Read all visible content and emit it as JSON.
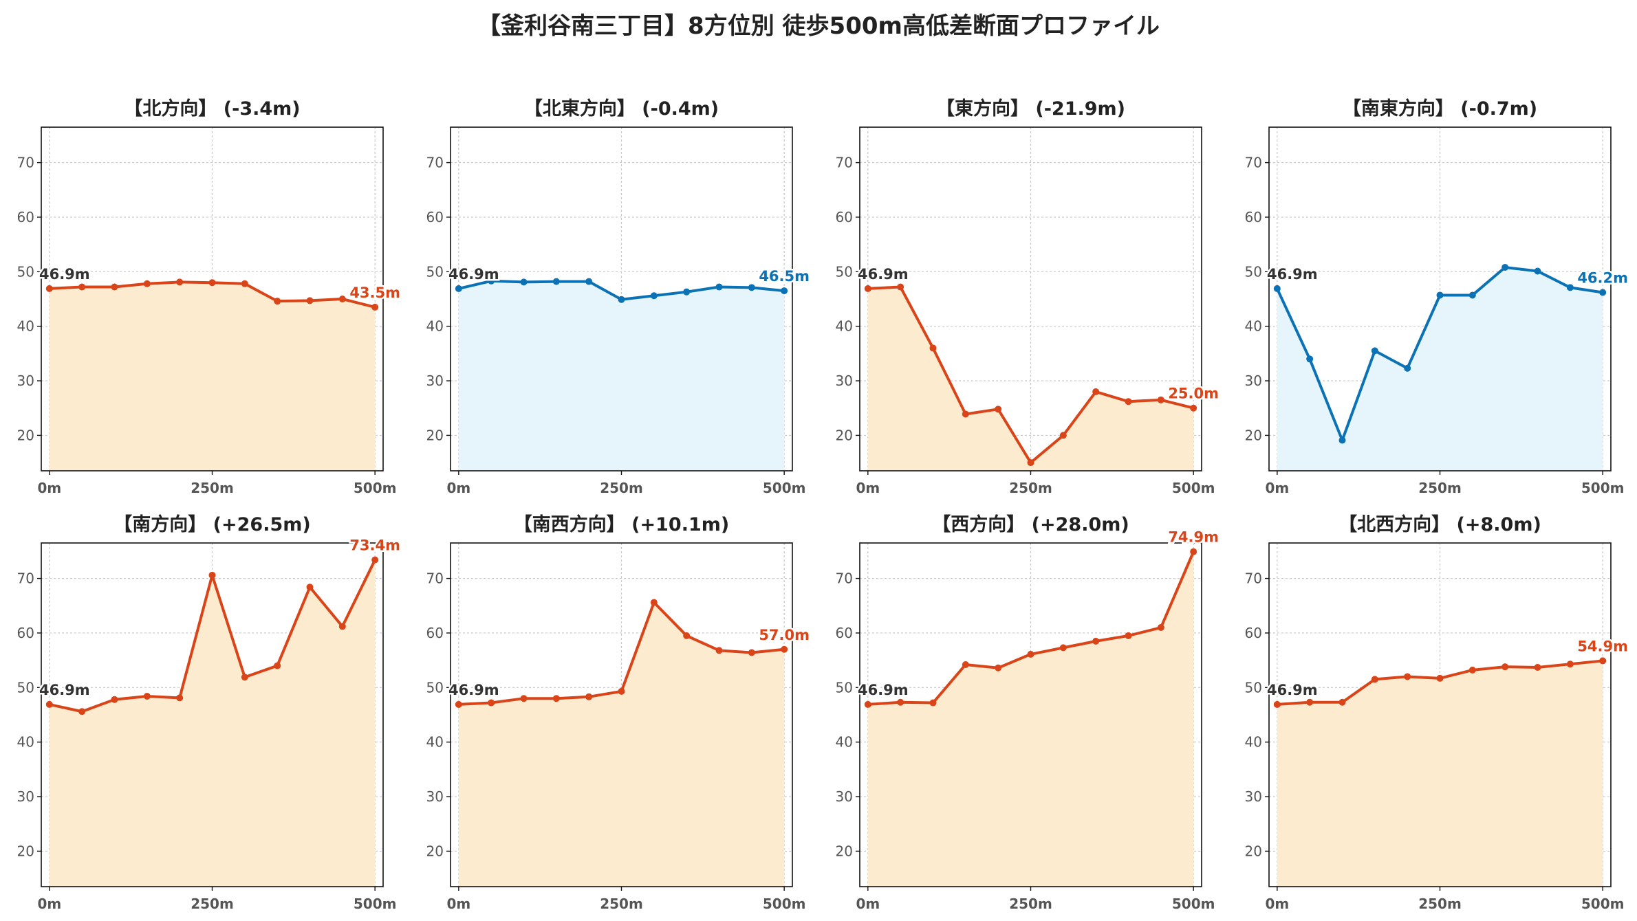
{
  "title": "【釜利谷南三丁目】8方位別 徒歩500m高低差断面プロファイル",
  "colors": {
    "down_line": "#d94418",
    "down_fill": "#fdebd0",
    "flat_line": "#0b72b5",
    "flat_fill": "#e6f5fb",
    "start_label": "#333333",
    "grid": "#c8c8c8",
    "axis_text": "#555555"
  },
  "chart_data": [
    {
      "type": "area",
      "title": "【北方向】 (-3.4m)",
      "color": "down",
      "x": [
        0,
        50,
        100,
        150,
        200,
        250,
        300,
        350,
        400,
        450,
        500
      ],
      "values": [
        46.9,
        47.2,
        47.2,
        47.8,
        48.1,
        48.0,
        47.8,
        44.6,
        44.7,
        45.0,
        43.5
      ],
      "start_label": "46.9m",
      "end_label": "43.5m",
      "xticks": [
        "0m",
        "250m",
        "500m"
      ],
      "yticks": [
        20,
        30,
        40,
        50,
        60,
        70
      ],
      "ylim": [
        13.5,
        76.5
      ],
      "grid": true
    },
    {
      "type": "area",
      "title": "【北東方向】 (-0.4m)",
      "color": "flat",
      "x": [
        0,
        50,
        100,
        150,
        200,
        250,
        300,
        350,
        400,
        450,
        500
      ],
      "values": [
        46.9,
        48.3,
        48.1,
        48.2,
        48.2,
        44.9,
        45.6,
        46.3,
        47.2,
        47.1,
        46.5
      ],
      "start_label": "46.9m",
      "end_label": "46.5m",
      "xticks": [
        "0m",
        "250m",
        "500m"
      ],
      "yticks": [
        20,
        30,
        40,
        50,
        60,
        70
      ],
      "ylim": [
        13.5,
        76.5
      ],
      "grid": true
    },
    {
      "type": "area",
      "title": "【東方向】 (-21.9m)",
      "color": "down",
      "x": [
        0,
        50,
        100,
        150,
        200,
        250,
        300,
        350,
        400,
        450,
        500
      ],
      "values": [
        46.9,
        47.2,
        36.0,
        23.9,
        24.8,
        15.0,
        20.0,
        28.0,
        26.2,
        26.5,
        25.0
      ],
      "start_label": "46.9m",
      "end_label": "25.0m",
      "xticks": [
        "0m",
        "250m",
        "500m"
      ],
      "yticks": [
        20,
        30,
        40,
        50,
        60,
        70
      ],
      "ylim": [
        13.5,
        76.5
      ],
      "grid": true
    },
    {
      "type": "area",
      "title": "【南東方向】 (-0.7m)",
      "color": "flat",
      "x": [
        0,
        50,
        100,
        150,
        200,
        250,
        300,
        350,
        400,
        450,
        500
      ],
      "values": [
        46.9,
        34.0,
        19.1,
        35.5,
        32.3,
        45.7,
        45.7,
        50.8,
        50.1,
        47.1,
        46.2
      ],
      "start_label": "46.9m",
      "end_label": "46.2m",
      "xticks": [
        "0m",
        "250m",
        "500m"
      ],
      "yticks": [
        20,
        30,
        40,
        50,
        60,
        70
      ],
      "ylim": [
        13.5,
        76.5
      ],
      "grid": true
    },
    {
      "type": "area",
      "title": "【南方向】 (+26.5m)",
      "color": "down",
      "x": [
        0,
        50,
        100,
        150,
        200,
        250,
        300,
        350,
        400,
        450,
        500
      ],
      "values": [
        46.9,
        45.6,
        47.8,
        48.4,
        48.1,
        70.6,
        51.9,
        54.0,
        68.4,
        61.2,
        73.4
      ],
      "start_label": "46.9m",
      "end_label": "73.4m",
      "xticks": [
        "0m",
        "250m",
        "500m"
      ],
      "yticks": [
        20,
        30,
        40,
        50,
        60,
        70
      ],
      "ylim": [
        13.5,
        76.5
      ],
      "grid": true
    },
    {
      "type": "area",
      "title": "【南西方向】 (+10.1m)",
      "color": "down",
      "x": [
        0,
        50,
        100,
        150,
        200,
        250,
        300,
        350,
        400,
        450,
        500
      ],
      "values": [
        46.9,
        47.2,
        48.0,
        48.0,
        48.3,
        49.3,
        65.6,
        59.5,
        56.8,
        56.4,
        57.0
      ],
      "start_label": "46.9m",
      "end_label": "57.0m",
      "xticks": [
        "0m",
        "250m",
        "500m"
      ],
      "yticks": [
        20,
        30,
        40,
        50,
        60,
        70
      ],
      "ylim": [
        13.5,
        76.5
      ],
      "grid": true
    },
    {
      "type": "area",
      "title": "【西方向】 (+28.0m)",
      "color": "down",
      "x": [
        0,
        50,
        100,
        150,
        200,
        250,
        300,
        350,
        400,
        450,
        500
      ],
      "values": [
        46.9,
        47.3,
        47.2,
        54.2,
        53.6,
        56.1,
        57.3,
        58.5,
        59.5,
        61.0,
        74.9
      ],
      "start_label": "46.9m",
      "end_label": "74.9m",
      "xticks": [
        "0m",
        "250m",
        "500m"
      ],
      "yticks": [
        20,
        30,
        40,
        50,
        60,
        70
      ],
      "ylim": [
        13.5,
        76.5
      ],
      "grid": true
    },
    {
      "type": "area",
      "title": "【北西方向】 (+8.0m)",
      "color": "down",
      "x": [
        0,
        50,
        100,
        150,
        200,
        250,
        300,
        350,
        400,
        450,
        500
      ],
      "values": [
        46.9,
        47.3,
        47.3,
        51.5,
        52.0,
        51.7,
        53.2,
        53.8,
        53.7,
        54.3,
        54.9
      ],
      "start_label": "46.9m",
      "end_label": "54.9m",
      "xticks": [
        "0m",
        "250m",
        "500m"
      ],
      "yticks": [
        20,
        30,
        40,
        50,
        60,
        70
      ],
      "ylim": [
        13.5,
        76.5
      ],
      "grid": true
    }
  ]
}
